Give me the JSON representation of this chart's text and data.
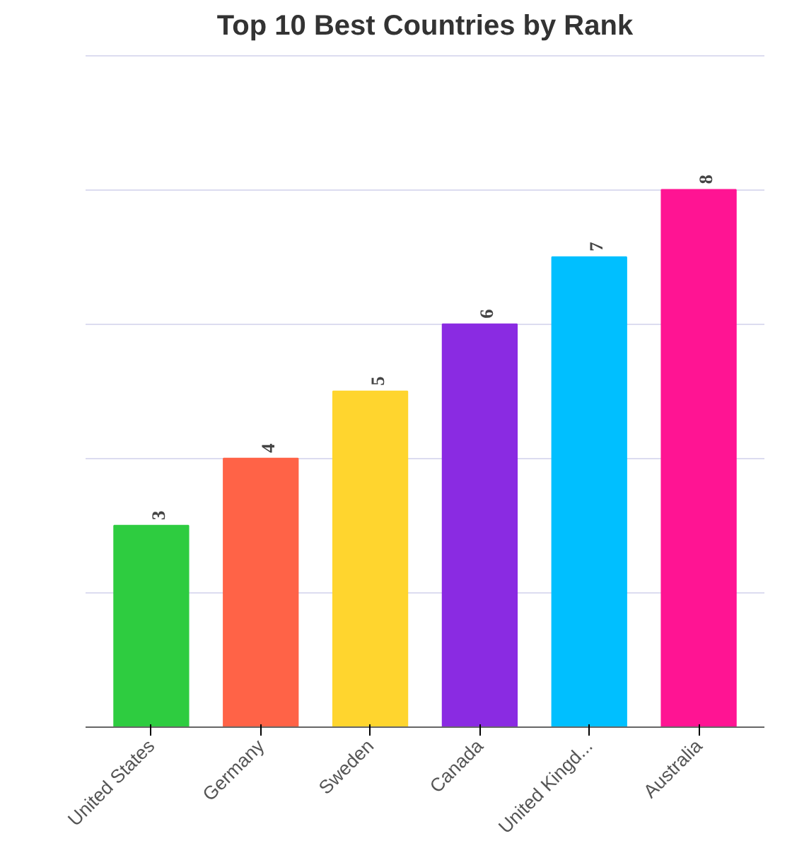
{
  "chart_data": {
    "type": "bar",
    "title": "Top 10 Best Countries by Rank",
    "categories": [
      "United States",
      "Germany",
      "Sweden",
      "Canada",
      "United Kingd...",
      "Australia"
    ],
    "values": [
      3,
      4,
      5,
      6,
      7,
      8
    ],
    "colors": [
      "#2ecc40",
      "#ff6347",
      "#ffd52e",
      "#8a2be2",
      "#00bfff",
      "#ff1493"
    ],
    "ylim": [
      0,
      10
    ],
    "yticks": [
      {
        "value": 0,
        "label": null
      },
      {
        "value": 2,
        "label": null
      },
      {
        "value": 4,
        "label": null
      },
      {
        "value": 6,
        "label": null
      },
      {
        "value": 8,
        "label": null
      },
      {
        "value": 10,
        "label": null
      }
    ],
    "tick_labels": "x",
    "grid": "y",
    "data_labels": true
  }
}
